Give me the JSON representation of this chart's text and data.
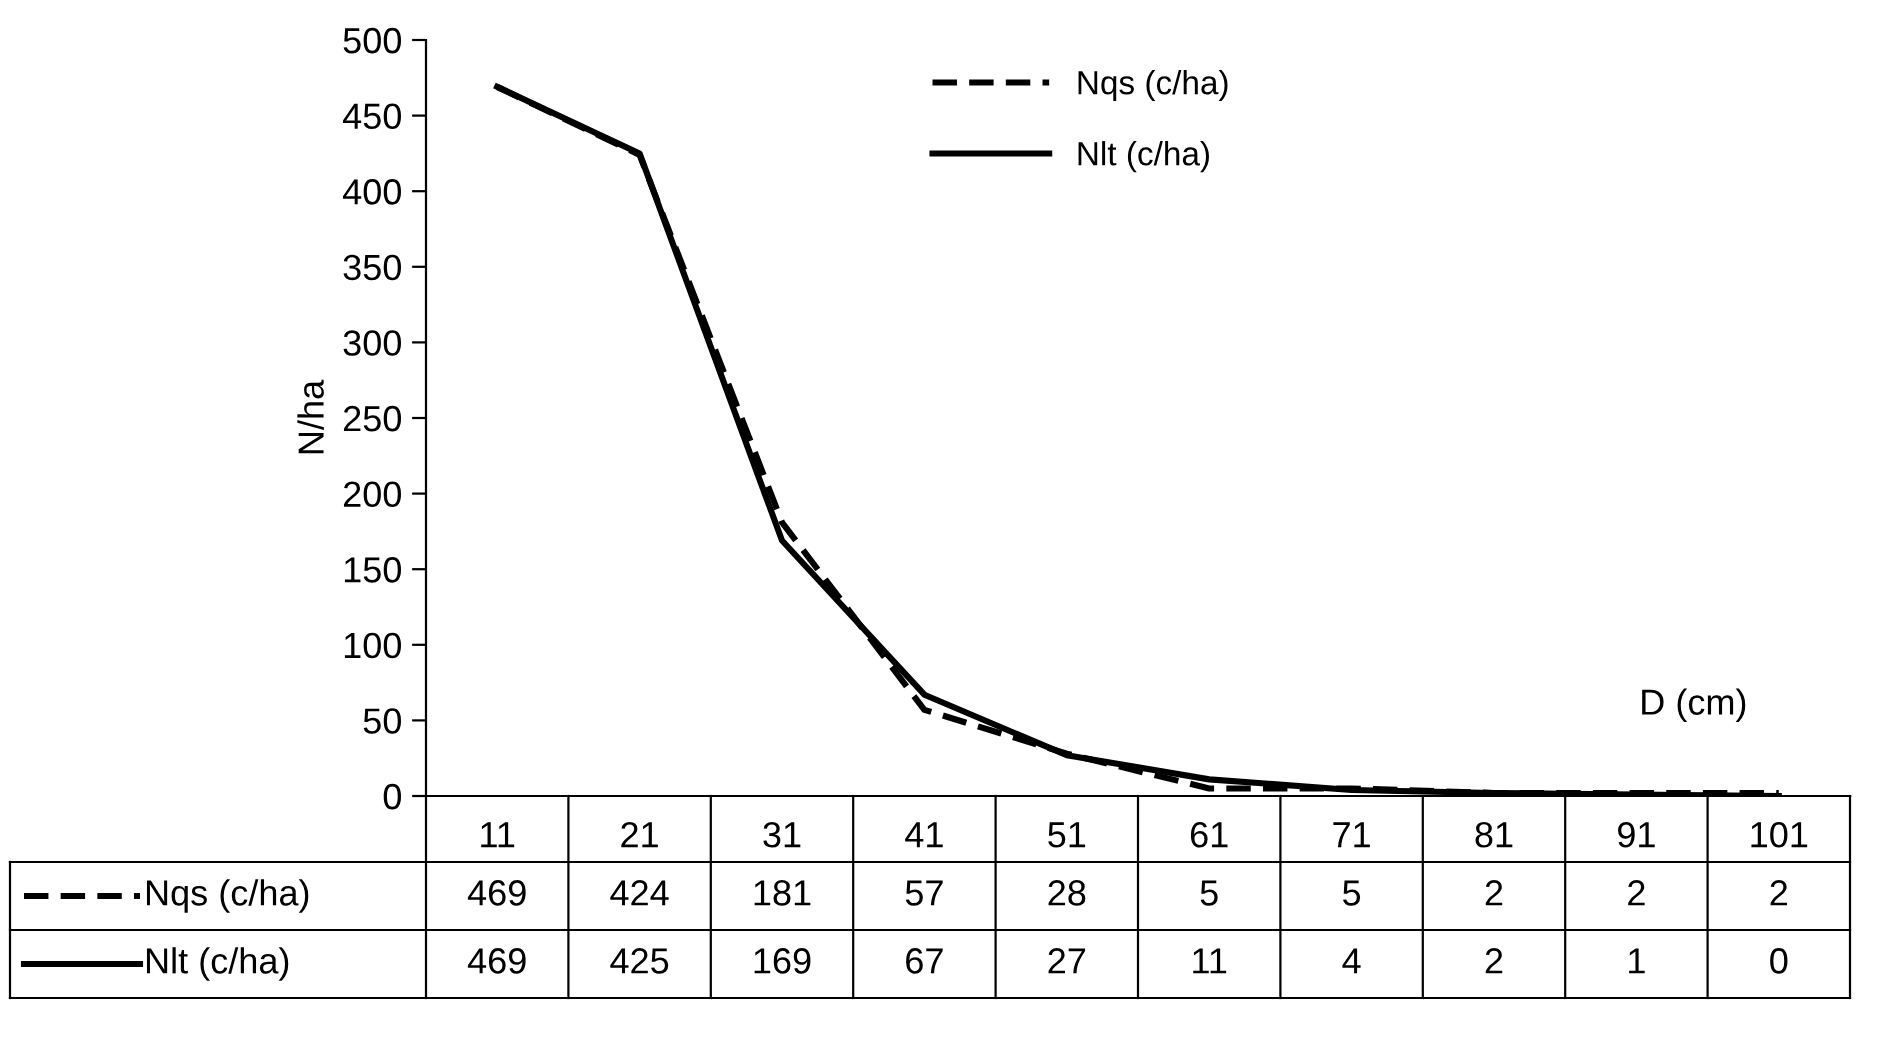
{
  "chart_data": {
    "type": "line",
    "xlabel": "D (cm)",
    "ylabel": "N/ha",
    "categories": [
      "11",
      "21",
      "31",
      "41",
      "51",
      "61",
      "71",
      "81",
      "91",
      "101"
    ],
    "series": [
      {
        "name": "Nqs (c/ha)",
        "color": "#000000",
        "line_style": "dashed",
        "values": [
          469,
          424,
          181,
          57,
          28,
          5,
          5,
          2,
          2,
          2
        ]
      },
      {
        "name": "Nlt (c/ha)",
        "color": "#000000",
        "line_style": "solid",
        "values": [
          469,
          425,
          169,
          67,
          27,
          11,
          4,
          2,
          1,
          0
        ]
      }
    ],
    "ylim": [
      0,
      500
    ],
    "yticks": [
      0,
      50,
      100,
      150,
      200,
      250,
      300,
      350,
      400,
      450,
      500
    ],
    "grid": false,
    "legend": "top",
    "marker": "none",
    "data_labels": true
  }
}
